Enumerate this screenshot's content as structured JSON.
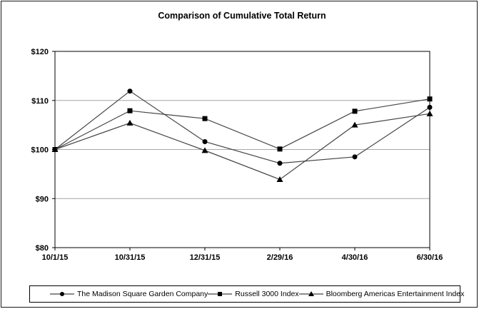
{
  "chart_data": {
    "type": "line",
    "title": "Comparison of Cumulative Total Return",
    "categories": [
      "10/1/15",
      "10/31/15",
      "12/31/15",
      "2/29/16",
      "4/30/16",
      "6/30/16"
    ],
    "series": [
      {
        "name": "The Madison Square Garden Company",
        "marker": "circle",
        "values": [
          100,
          111.9,
          101.6,
          97.2,
          98.5,
          108.6
        ]
      },
      {
        "name": "Russell 3000 Index",
        "marker": "square",
        "values": [
          100,
          107.9,
          106.3,
          100.1,
          107.8,
          110.3
        ]
      },
      {
        "name": "Bloomberg Americas Entertainment Index",
        "marker": "triangle",
        "values": [
          100,
          105.4,
          99.8,
          93.9,
          105.0,
          107.3
        ]
      }
    ],
    "ylim": [
      80,
      120
    ],
    "y_ticks": [
      80,
      90,
      100,
      110,
      120
    ],
    "y_tick_labels": [
      "$80",
      "$90",
      "$100",
      "$110",
      "$120"
    ],
    "grid": "horizontal",
    "legend_position": "bottom",
    "line_color": "#454545",
    "marker_color": "#000000",
    "gridline_color": "#a6a6a6",
    "axis_color": "#000000"
  }
}
